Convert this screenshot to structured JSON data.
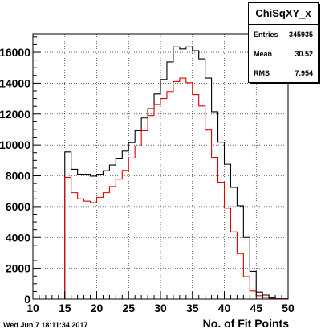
{
  "chart_data": {
    "type": "histogram",
    "title": "ChiSqXY_x",
    "xlabel": "No. of Fit Points",
    "ylabel": "",
    "xlim": [
      10,
      50
    ],
    "ylim": [
      0,
      17200
    ],
    "grid": true,
    "x_ticks": [
      "10",
      "15",
      "20",
      "25",
      "30",
      "35",
      "40",
      "45",
      "50"
    ],
    "y_ticks": [
      "0",
      "2000",
      "4000",
      "6000",
      "8000",
      "10000",
      "12000",
      "14000",
      "16000"
    ],
    "y_tick_values": [
      0,
      2000,
      4000,
      6000,
      8000,
      10000,
      12000,
      14000,
      16000
    ],
    "bin_edges_start": 10,
    "bin_width": 1,
    "series": [
      {
        "color": "#000000",
        "values": [
          0,
          0,
          0,
          0,
          0,
          9550,
          8420,
          8100,
          8100,
          7980,
          8100,
          8330,
          8700,
          9100,
          9600,
          10150,
          10920,
          11740,
          12350,
          13300,
          14240,
          15380,
          16350,
          16220,
          16350,
          16100,
          15580,
          14330,
          12150,
          10180,
          8750,
          7250,
          6050,
          4000,
          1800,
          460,
          260,
          120,
          60,
          20
        ]
      },
      {
        "color": "#e00000",
        "values": [
          0,
          0,
          0,
          0,
          0,
          7900,
          6900,
          6500,
          6350,
          6250,
          6600,
          6900,
          7300,
          7780,
          8350,
          9150,
          9930,
          10920,
          11900,
          12620,
          13000,
          13460,
          14100,
          14330,
          14030,
          13260,
          12520,
          10960,
          9200,
          7580,
          5900,
          4360,
          2960,
          1460,
          530,
          220,
          100,
          50,
          20,
          10
        ]
      }
    ]
  },
  "stats": {
    "title": "ChiSqXY_x",
    "entries_label": "Entries",
    "entries_value": "345935",
    "mean_label": "Mean",
    "mean_value": "30.52",
    "rms_label": "RMS",
    "rms_value": "7.954"
  },
  "footer": {
    "timestamp": "Wed Jun  7 18:11:34 2017"
  },
  "colors": {
    "frame": "#000000",
    "grid": "#000000"
  }
}
